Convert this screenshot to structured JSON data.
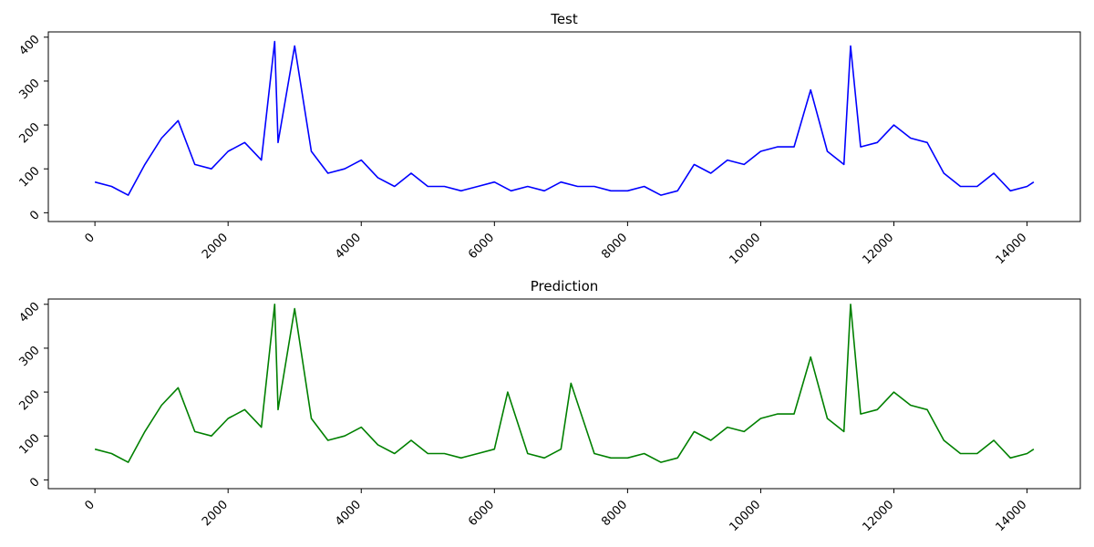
{
  "chart_data": [
    {
      "type": "line",
      "title": "Test",
      "xlabel": "",
      "ylabel": "",
      "xlim": [
        -700,
        14800
      ],
      "ylim": [
        -20,
        412
      ],
      "x_ticks": [
        0,
        2000,
        4000,
        6000,
        8000,
        10000,
        12000,
        14000
      ],
      "x_tick_labels": [
        "0",
        "2000",
        "4000",
        "6000",
        "8000",
        "10000",
        "12000",
        "14000"
      ],
      "y_ticks": [
        0,
        100,
        200,
        300,
        400
      ],
      "y_tick_labels": [
        "0",
        "100",
        "200",
        "300",
        "400"
      ],
      "grid": false,
      "tick_label_rotation": 45,
      "color": "#0000ff",
      "series": [
        {
          "x": [
            0,
            250,
            500,
            750,
            1000,
            1250,
            1500,
            1750,
            2000,
            2250,
            2500,
            2700,
            2750,
            3000,
            3250,
            3500,
            3750,
            4000,
            4250,
            4500,
            4750,
            5000,
            5250,
            5500,
            5750,
            6000,
            6250,
            6500,
            6750,
            7000,
            7250,
            7500,
            7750,
            8000,
            8250,
            8500,
            8750,
            9000,
            9250,
            9500,
            9750,
            10000,
            10250,
            10500,
            10750,
            11000,
            11250,
            11350,
            11500,
            11750,
            12000,
            12250,
            12500,
            12750,
            13000,
            13250,
            13500,
            13750,
            14000,
            14100
          ],
          "y": [
            70,
            60,
            40,
            110,
            170,
            210,
            110,
            100,
            140,
            160,
            120,
            390,
            160,
            380,
            140,
            90,
            100,
            120,
            80,
            60,
            90,
            60,
            60,
            50,
            60,
            70,
            50,
            60,
            50,
            70,
            60,
            60,
            50,
            50,
            60,
            40,
            50,
            110,
            90,
            120,
            110,
            140,
            150,
            150,
            280,
            140,
            110,
            380,
            150,
            160,
            200,
            170,
            160,
            90,
            60,
            60,
            90,
            50,
            60,
            70
          ]
        }
      ]
    },
    {
      "type": "line",
      "title": "Prediction",
      "xlabel": "",
      "ylabel": "",
      "xlim": [
        -700,
        14800
      ],
      "ylim": [
        -20,
        412
      ],
      "x_ticks": [
        0,
        2000,
        4000,
        6000,
        8000,
        10000,
        12000,
        14000
      ],
      "x_tick_labels": [
        "0",
        "2000",
        "4000",
        "6000",
        "8000",
        "10000",
        "12000",
        "14000"
      ],
      "y_ticks": [
        0,
        100,
        200,
        300,
        400
      ],
      "y_tick_labels": [
        "0",
        "100",
        "200",
        "300",
        "400"
      ],
      "grid": false,
      "tick_label_rotation": 45,
      "color": "#008000",
      "series": [
        {
          "x": [
            0,
            250,
            500,
            750,
            1000,
            1250,
            1500,
            1750,
            2000,
            2250,
            2500,
            2700,
            2750,
            3000,
            3250,
            3500,
            3750,
            4000,
            4250,
            4500,
            4750,
            5000,
            5250,
            5500,
            5750,
            6000,
            6200,
            6500,
            6750,
            7000,
            7150,
            7500,
            7750,
            8000,
            8250,
            8500,
            8750,
            9000,
            9250,
            9500,
            9750,
            10000,
            10250,
            10500,
            10750,
            11000,
            11250,
            11350,
            11500,
            11750,
            12000,
            12250,
            12500,
            12750,
            13000,
            13250,
            13500,
            13750,
            14000,
            14100
          ],
          "y": [
            70,
            60,
            40,
            110,
            170,
            210,
            110,
            100,
            140,
            160,
            120,
            400,
            160,
            390,
            140,
            90,
            100,
            120,
            80,
            60,
            90,
            60,
            60,
            50,
            60,
            70,
            200,
            60,
            50,
            70,
            220,
            60,
            50,
            50,
            60,
            40,
            50,
            110,
            90,
            120,
            110,
            140,
            150,
            150,
            280,
            140,
            110,
            400,
            150,
            160,
            200,
            170,
            160,
            90,
            60,
            60,
            90,
            50,
            60,
            70
          ]
        }
      ]
    }
  ]
}
